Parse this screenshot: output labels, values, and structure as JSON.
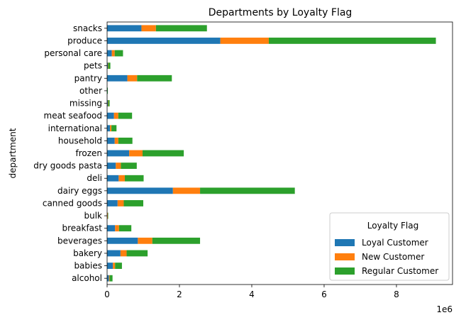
{
  "chart_data": {
    "type": "bar",
    "orientation": "horizontal",
    "stacked": true,
    "title": "Departments by Loyalty Flag",
    "xlabel": "",
    "ylabel": "department",
    "xlim": [
      0,
      9.55
    ],
    "x_scale_label": "1e6",
    "x_ticks": [
      0,
      2,
      4,
      6,
      8
    ],
    "grid": false,
    "categories": [
      "alcohol",
      "babies",
      "bakery",
      "beverages",
      "breakfast",
      "bulk",
      "canned goods",
      "dairy eggs",
      "deli",
      "dry goods pasta",
      "frozen",
      "household",
      "international",
      "meat seafood",
      "missing",
      "other",
      "pantry",
      "pets",
      "personal care",
      "produce",
      "snacks"
    ],
    "series": [
      {
        "name": "Loyal Customer",
        "color": "#1f77b4",
        "values": [
          0.05,
          0.16,
          0.37,
          0.85,
          0.22,
          0.01,
          0.29,
          1.82,
          0.32,
          0.24,
          0.61,
          0.21,
          0.08,
          0.19,
          0.02,
          0.01,
          0.56,
          0.02,
          0.13,
          3.13,
          0.95
        ]
      },
      {
        "name": "New Customer",
        "color": "#ff7f0e",
        "values": [
          0.02,
          0.06,
          0.17,
          0.4,
          0.11,
          0.01,
          0.17,
          0.75,
          0.17,
          0.14,
          0.37,
          0.1,
          0.04,
          0.12,
          0.01,
          0.0,
          0.27,
          0.01,
          0.08,
          1.34,
          0.4
        ]
      },
      {
        "name": "Regular Customer",
        "color": "#2ca02c",
        "values": [
          0.08,
          0.19,
          0.58,
          1.32,
          0.34,
          0.01,
          0.54,
          2.62,
          0.52,
          0.44,
          1.14,
          0.39,
          0.14,
          0.38,
          0.04,
          0.01,
          0.96,
          0.06,
          0.23,
          4.62,
          1.41
        ]
      }
    ],
    "legend": {
      "title": "Loyalty Flag",
      "position": "lower-right"
    }
  }
}
